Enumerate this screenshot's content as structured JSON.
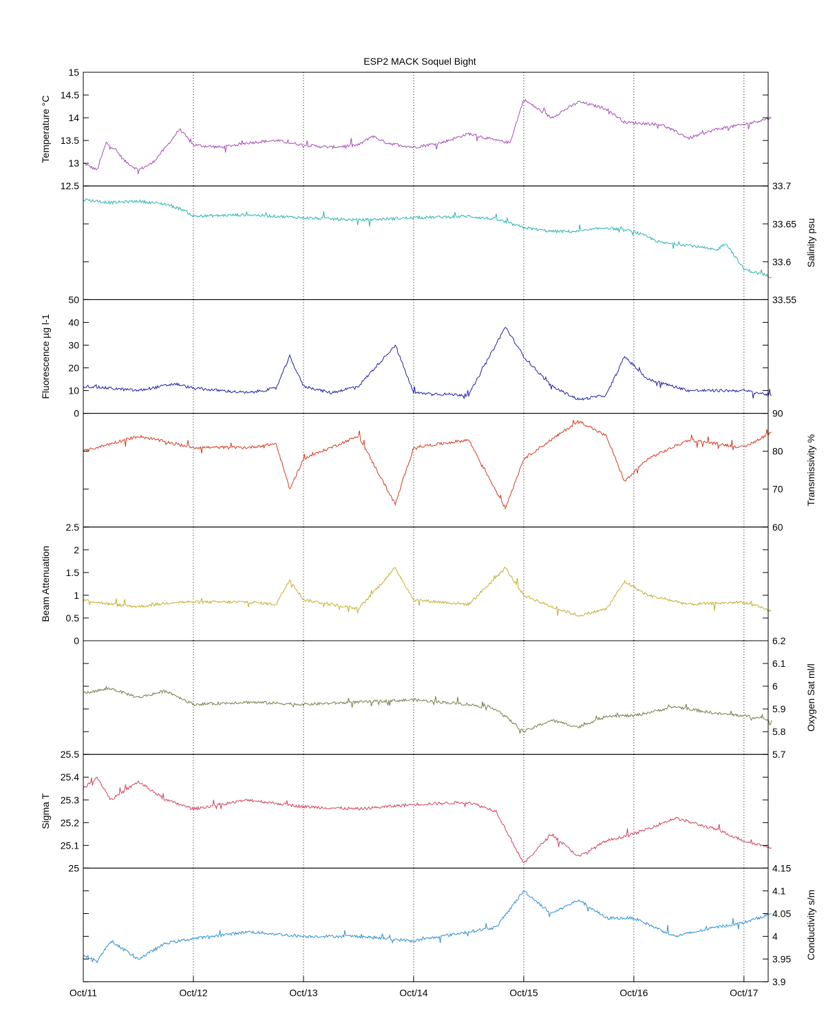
{
  "figure": {
    "title": "ESP2 MACK  Soquel Bight",
    "x_tick_labels": [
      "Oct/11",
      "Oct/12",
      "Oct/13",
      "Oct/14",
      "Oct/15",
      "Oct/16",
      "Oct/17"
    ]
  },
  "chart_data": [
    {
      "type": "line",
      "name": "temperature",
      "ylabel": "Temperature °C",
      "axis_side": "left",
      "color": "#a64ab5",
      "ylim": [
        12.5,
        15
      ],
      "ticks": [
        12.5,
        13,
        13.5,
        14,
        14.5,
        15
      ],
      "tick_labels": [
        "12.5",
        "13",
        "13.5",
        "14",
        "14.5",
        "15"
      ],
      "grid": "vertical dotted at day boundaries",
      "x": [
        "Oct/11 00:00",
        "Oct/11 03:00",
        "Oct/11 05:00",
        "Oct/11 07:00",
        "Oct/11 09:00",
        "Oct/11 12:00",
        "Oct/11 15:00",
        "Oct/11 18:00",
        "Oct/11 21:00",
        "Oct/12 00:00",
        "Oct/12 06:00",
        "Oct/12 12:00",
        "Oct/12 18:00",
        "Oct/13 00:00",
        "Oct/13 06:00",
        "Oct/13 12:00",
        "Oct/13 15:00",
        "Oct/13 18:00",
        "Oct/13 21:00",
        "Oct/14 00:00",
        "Oct/14 06:00",
        "Oct/14 12:00",
        "Oct/14 18:00",
        "Oct/14 21:00",
        "Oct/15 00:00",
        "Oct/15 06:00",
        "Oct/15 12:00",
        "Oct/15 18:00",
        "Oct/15 22:00",
        "Oct/16 06:00",
        "Oct/16 12:00",
        "Oct/16 18:00",
        "Oct/17 00:00",
        "Oct/17 06:00"
      ],
      "values": [
        13.0,
        12.85,
        13.45,
        13.3,
        13.05,
        12.85,
        13.0,
        13.35,
        13.75,
        13.4,
        13.35,
        13.45,
        13.5,
        13.4,
        13.35,
        13.4,
        13.6,
        13.45,
        13.4,
        13.35,
        13.45,
        13.65,
        13.5,
        13.45,
        14.4,
        14.0,
        14.35,
        14.2,
        13.9,
        13.85,
        13.55,
        13.75,
        13.85,
        14.0
      ]
    },
    {
      "type": "line",
      "name": "salinity",
      "ylabel": "Salinity psu",
      "axis_side": "right",
      "color": "#2ab3b3",
      "ylim": [
        33.55,
        33.7
      ],
      "ticks": [
        33.55,
        33.6,
        33.65,
        33.7
      ],
      "tick_labels": [
        "33.55",
        "33.6",
        "33.65",
        "33.7"
      ],
      "x": [
        "Oct/11 00:00",
        "Oct/11 06:00",
        "Oct/11 12:00",
        "Oct/11 18:00",
        "Oct/11 22:00",
        "Oct/12 00:00",
        "Oct/12 12:00",
        "Oct/13 00:00",
        "Oct/13 12:00",
        "Oct/14 00:00",
        "Oct/14 12:00",
        "Oct/14 18:00",
        "Oct/15 00:00",
        "Oct/15 06:00",
        "Oct/15 12:00",
        "Oct/15 18:00",
        "Oct/16 00:00",
        "Oct/16 06:00",
        "Oct/16 12:00",
        "Oct/16 18:00",
        "Oct/16 20:00",
        "Oct/17 00:00",
        "Oct/17 06:00"
      ],
      "values": [
        33.682,
        33.678,
        33.68,
        33.676,
        33.668,
        33.66,
        33.662,
        33.658,
        33.655,
        33.658,
        33.66,
        33.656,
        33.645,
        33.64,
        33.64,
        33.645,
        33.64,
        33.625,
        33.622,
        33.615,
        33.625,
        33.59,
        33.58
      ]
    },
    {
      "type": "line",
      "name": "fluorescence",
      "ylabel": "Fluorescence µg l-1",
      "axis_side": "left",
      "color": "#1f1fa6",
      "ylim": [
        0,
        50
      ],
      "ticks": [
        0,
        10,
        20,
        30,
        40,
        50
      ],
      "tick_labels": [
        "0",
        "10",
        "20",
        "30",
        "40",
        "50"
      ],
      "x": [
        "Oct/11 00:00",
        "Oct/11 06:00",
        "Oct/11 12:00",
        "Oct/11 20:00",
        "Oct/12 00:00",
        "Oct/12 12:00",
        "Oct/12 18:00",
        "Oct/12 21:00",
        "Oct/13 00:00",
        "Oct/13 06:00",
        "Oct/13 12:00",
        "Oct/13 20:00",
        "Oct/14 00:00",
        "Oct/14 12:00",
        "Oct/14 20:00",
        "Oct/15 00:00",
        "Oct/15 06:00",
        "Oct/15 12:00",
        "Oct/15 18:00",
        "Oct/15 22:00",
        "Oct/16 03:00",
        "Oct/16 12:00",
        "Oct/17 00:00",
        "Oct/17 06:00"
      ],
      "values": [
        12,
        11,
        10,
        13,
        11,
        9,
        11,
        25,
        12,
        9,
        12,
        30,
        9,
        8,
        38,
        25,
        12,
        6,
        8,
        25,
        15,
        10,
        10,
        8
      ]
    },
    {
      "type": "line",
      "name": "transmissivity",
      "ylabel": "Transmissivity %",
      "axis_side": "right",
      "color": "#d23a1f",
      "ylim": [
        60,
        90
      ],
      "ticks": [
        60,
        70,
        80,
        90
      ],
      "tick_labels": [
        "60",
        "70",
        "80",
        "90"
      ],
      "x": [
        "Oct/11 00:00",
        "Oct/11 06:00",
        "Oct/11 12:00",
        "Oct/11 20:00",
        "Oct/12 00:00",
        "Oct/12 12:00",
        "Oct/12 18:00",
        "Oct/12 21:00",
        "Oct/13 00:00",
        "Oct/13 12:00",
        "Oct/13 20:00",
        "Oct/14 00:00",
        "Oct/14 12:00",
        "Oct/14 20:00",
        "Oct/15 00:00",
        "Oct/15 06:00",
        "Oct/15 12:00",
        "Oct/15 18:00",
        "Oct/15 22:00",
        "Oct/16 03:00",
        "Oct/16 12:00",
        "Oct/17 00:00",
        "Oct/17 06:00"
      ],
      "values": [
        80,
        82,
        84,
        82,
        81,
        81,
        82,
        70,
        78,
        84,
        66,
        81,
        83,
        65,
        78,
        83,
        88,
        84,
        72,
        78,
        83,
        81,
        85
      ]
    },
    {
      "type": "line",
      "name": "beam-attenuation",
      "ylabel": "Beam Attenuation",
      "axis_side": "left",
      "color": "#c4ad2c",
      "ylim": [
        0,
        2.5
      ],
      "ticks": [
        0,
        0.5,
        1,
        1.5,
        2,
        2.5
      ],
      "tick_labels": [
        "0",
        "0.5",
        "1",
        "1.5",
        "2",
        "2.5"
      ],
      "x": [
        "Oct/11 00:00",
        "Oct/11 06:00",
        "Oct/11 12:00",
        "Oct/11 20:00",
        "Oct/12 00:00",
        "Oct/12 12:00",
        "Oct/12 18:00",
        "Oct/12 21:00",
        "Oct/13 00:00",
        "Oct/13 12:00",
        "Oct/13 20:00",
        "Oct/14 00:00",
        "Oct/14 12:00",
        "Oct/14 20:00",
        "Oct/15 00:00",
        "Oct/15 06:00",
        "Oct/15 12:00",
        "Oct/15 18:00",
        "Oct/15 22:00",
        "Oct/16 03:00",
        "Oct/16 12:00",
        "Oct/17 00:00",
        "Oct/17 06:00"
      ],
      "values": [
        0.9,
        0.8,
        0.75,
        0.85,
        0.85,
        0.85,
        0.8,
        1.35,
        0.9,
        0.7,
        1.6,
        0.9,
        0.8,
        1.6,
        1.0,
        0.75,
        0.55,
        0.7,
        1.3,
        1.0,
        0.8,
        0.85,
        0.65
      ]
    },
    {
      "type": "line",
      "name": "oxygen-saturation",
      "ylabel": "Oxygen Sat ml/l",
      "axis_side": "right",
      "color": "#7a7a4a",
      "ylim": [
        5.7,
        6.2
      ],
      "ticks": [
        5.7,
        5.8,
        5.9,
        6.0,
        6.1,
        6.2
      ],
      "tick_labels": [
        "5.7",
        "5.8",
        "5.9",
        "6",
        "6.1",
        "6.2"
      ],
      "x": [
        "Oct/11 00:00",
        "Oct/11 06:00",
        "Oct/11 12:00",
        "Oct/11 18:00",
        "Oct/12 00:00",
        "Oct/12 12:00",
        "Oct/13 00:00",
        "Oct/13 12:00",
        "Oct/14 00:00",
        "Oct/14 12:00",
        "Oct/14 18:00",
        "Oct/15 00:00",
        "Oct/15 06:00",
        "Oct/15 12:00",
        "Oct/15 18:00",
        "Oct/16 00:00",
        "Oct/16 09:00",
        "Oct/16 18:00",
        "Oct/17 00:00",
        "Oct/17 06:00"
      ],
      "values": [
        5.97,
        5.99,
        5.95,
        5.98,
        5.92,
        5.93,
        5.92,
        5.93,
        5.94,
        5.92,
        5.9,
        5.8,
        5.85,
        5.82,
        5.87,
        5.87,
        5.91,
        5.88,
        5.87,
        5.85
      ]
    },
    {
      "type": "line",
      "name": "sigma-t",
      "ylabel": "Sigma T",
      "axis_side": "left",
      "color": "#d23f5a",
      "ylim": [
        25,
        25.5
      ],
      "ticks": [
        25,
        25.1,
        25.2,
        25.3,
        25.4,
        25.5
      ],
      "tick_labels": [
        "25",
        "25.1",
        "25.2",
        "25.3",
        "25.4",
        "25.5"
      ],
      "x": [
        "Oct/11 00:00",
        "Oct/11 03:00",
        "Oct/11 06:00",
        "Oct/11 12:00",
        "Oct/11 18:00",
        "Oct/12 00:00",
        "Oct/12 12:00",
        "Oct/13 00:00",
        "Oct/13 12:00",
        "Oct/14 00:00",
        "Oct/14 12:00",
        "Oct/14 18:00",
        "Oct/15 00:00",
        "Oct/15 06:00",
        "Oct/15 12:00",
        "Oct/15 18:00",
        "Oct/16 00:00",
        "Oct/16 09:00",
        "Oct/16 18:00",
        "Oct/17 00:00",
        "Oct/17 06:00"
      ],
      "values": [
        25.35,
        25.4,
        25.3,
        25.38,
        25.3,
        25.26,
        25.3,
        25.27,
        25.26,
        25.28,
        25.29,
        25.25,
        25.02,
        25.15,
        25.05,
        25.12,
        25.15,
        25.22,
        25.17,
        25.12,
        25.09
      ]
    },
    {
      "type": "line",
      "name": "conductivity",
      "ylabel": "Conductivity s/m",
      "axis_side": "right",
      "color": "#2a8fd0",
      "ylim": [
        3.9,
        4.15
      ],
      "ticks": [
        3.9,
        3.95,
        4.0,
        4.05,
        4.1,
        4.15
      ],
      "tick_labels": [
        "3.9",
        "3.95",
        "4",
        "4.05",
        "4.1",
        "4.15"
      ],
      "x": [
        "Oct/11 00:00",
        "Oct/11 03:00",
        "Oct/11 06:00",
        "Oct/11 12:00",
        "Oct/11 18:00",
        "Oct/12 00:00",
        "Oct/12 12:00",
        "Oct/13 00:00",
        "Oct/13 12:00",
        "Oct/14 00:00",
        "Oct/14 12:00",
        "Oct/14 18:00",
        "Oct/15 00:00",
        "Oct/15 06:00",
        "Oct/15 12:00",
        "Oct/15 18:00",
        "Oct/16 00:00",
        "Oct/16 09:00",
        "Oct/16 18:00",
        "Oct/17 00:00",
        "Oct/17 06:00"
      ],
      "values": [
        3.96,
        3.945,
        3.99,
        3.95,
        3.985,
        3.995,
        4.01,
        4.0,
        4.0,
        3.99,
        4.01,
        4.02,
        4.1,
        4.05,
        4.08,
        4.04,
        4.04,
        4.0,
        4.02,
        4.03,
        4.05
      ]
    }
  ]
}
